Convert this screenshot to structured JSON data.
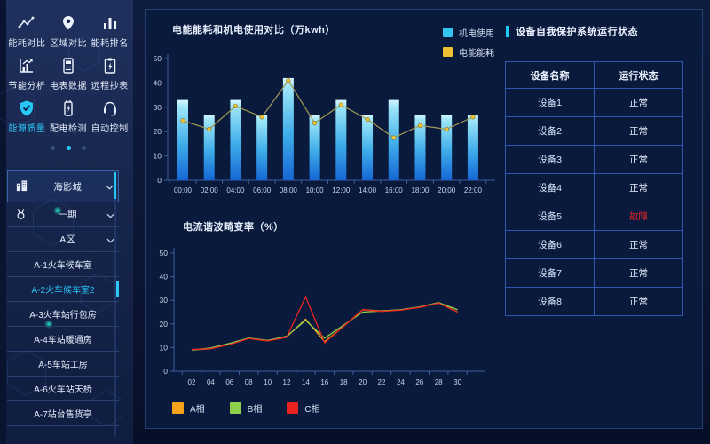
{
  "sidebar": {
    "accent_color": "#2bc8f7",
    "grid": [
      {
        "label": "能耗对比",
        "active": false
      },
      {
        "label": "区域对比",
        "active": false
      },
      {
        "label": "能耗排名",
        "active": false
      },
      {
        "label": "节能分析",
        "active": false
      },
      {
        "label": "电表数据",
        "active": false
      },
      {
        "label": "远程抄表",
        "active": false
      },
      {
        "label": "能源质量",
        "active": true
      },
      {
        "label": "配电检测",
        "active": false
      },
      {
        "label": "自动控制",
        "active": false
      }
    ],
    "pager": {
      "dot_count": 3,
      "active_dot": 1
    },
    "tree": {
      "site_label": "海影城",
      "phase_label": "一期",
      "zone_label": "A区",
      "items": [
        {
          "label": "A-1火车候车室",
          "selected": false
        },
        {
          "label": "A-2火车候车室2",
          "selected": true
        },
        {
          "label": "A-3火车站行包房",
          "selected": false
        },
        {
          "label": "A-4车站暖通房",
          "selected": false
        },
        {
          "label": "A-5车站工房",
          "selected": false
        },
        {
          "label": "A-6火车站天桥",
          "selected": false
        },
        {
          "label": "A-7站台售货亭",
          "selected": false
        }
      ]
    }
  },
  "chart_data": [
    {
      "type": "bar",
      "title": "电能能耗和机电使用对比（万kwh）",
      "categories": [
        "00:00",
        "02:00",
        "04:00",
        "06:00",
        "08:00",
        "10:00",
        "12:00",
        "14:00",
        "16:00",
        "18:00",
        "20:00",
        "22:00"
      ],
      "series": [
        {
          "name": "机电使用",
          "kind": "bar",
          "legend_color": "#35c5f2",
          "gradient": [
            "#d9f6ff",
            "#9fe7f8",
            "#3fadea",
            "#1566d4"
          ],
          "values": [
            33,
            27,
            33,
            27,
            42,
            27,
            33,
            27,
            33,
            27,
            27,
            27
          ]
        },
        {
          "name": "电能能耗",
          "kind": "line",
          "legend_color": "#f0c132",
          "line_color": "#a39a55",
          "marker_color": "#f2c235",
          "values": [
            24.5,
            21,
            30.5,
            26,
            41,
            23.5,
            31,
            25,
            17.5,
            22.5,
            21,
            26
          ]
        }
      ],
      "ylim": [
        0,
        50
      ],
      "yticks": [
        0,
        10,
        20,
        30,
        40,
        50
      ],
      "legend_position": "top-right",
      "grid": false
    },
    {
      "type": "line",
      "title": "电流谐波畸变率（%）",
      "categories": [
        "02",
        "04",
        "06",
        "08",
        "10",
        "12",
        "14",
        "16",
        "18",
        "20",
        "22",
        "24",
        "26",
        "28",
        "30"
      ],
      "series": [
        {
          "name": "A相",
          "legend_color": "#f5a21c",
          "line_color": "#f5a21c",
          "values": [
            9,
            9.5,
            11.5,
            14,
            13,
            14.5,
            22,
            12.5,
            19,
            26,
            25.5,
            26,
            27,
            29,
            25
          ]
        },
        {
          "name": "B相",
          "legend_color": "#8ed04e",
          "line_color": "#8ed04e",
          "values": [
            9,
            9.8,
            11.8,
            14,
            13,
            14.8,
            21.5,
            14,
            19.5,
            25,
            25.5,
            26,
            27.2,
            29,
            26
          ]
        },
        {
          "name": "C相",
          "legend_color": "#e8231d",
          "line_color": "#e8231d",
          "values": [
            9.2,
            9.5,
            11.3,
            13.8,
            12.8,
            14.3,
            31.5,
            12,
            19,
            26,
            25.3,
            25.8,
            27,
            28.8,
            25
          ]
        }
      ],
      "ylim": [
        0,
        50
      ],
      "yticks": [
        0,
        10,
        20,
        30,
        40,
        50
      ],
      "legend_position": "bottom-left",
      "grid": false
    }
  ],
  "right_panel": {
    "title": "设备自我保护系统运行状态",
    "table": {
      "headers": [
        "设备名称",
        "运行状态"
      ],
      "rows": [
        {
          "name": "设备1",
          "status": "正常",
          "fault": false
        },
        {
          "name": "设备2",
          "status": "正常",
          "fault": false
        },
        {
          "name": "设备3",
          "status": "正常",
          "fault": false
        },
        {
          "name": "设备4",
          "status": "正常",
          "fault": false
        },
        {
          "name": "设备5",
          "status": "故障",
          "fault": true
        },
        {
          "name": "设备6",
          "status": "正常",
          "fault": false
        },
        {
          "name": "设备7",
          "status": "正常",
          "fault": false
        },
        {
          "name": "设备8",
          "status": "正常",
          "fault": false
        }
      ]
    },
    "status_colors": {
      "normal": "#e6eefc",
      "fault": "#e62525"
    }
  }
}
